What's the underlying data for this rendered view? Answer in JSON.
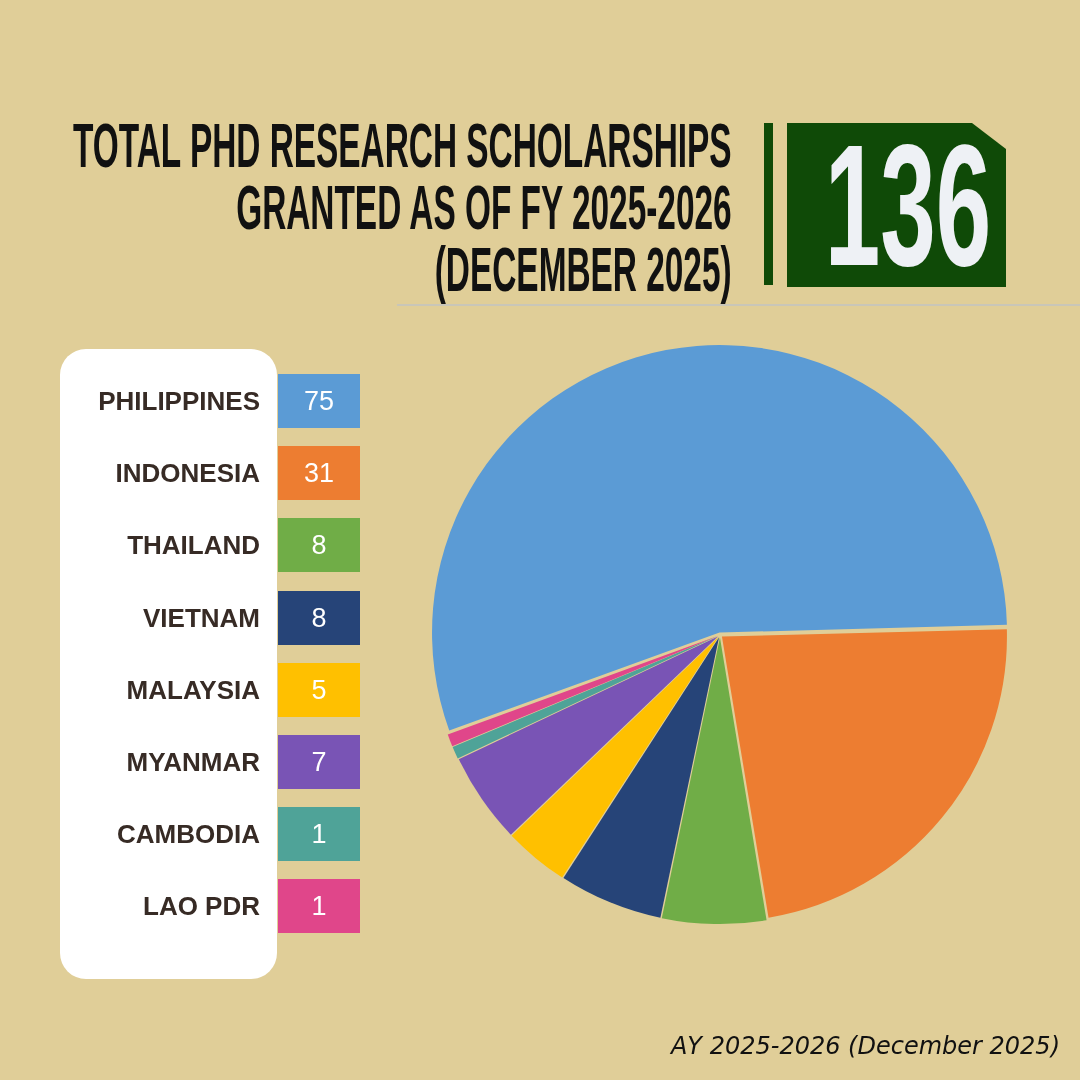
{
  "chart_data": {
    "type": "pie",
    "title": "TOTAL PHD RESEARCH SCHOLARSHIPS\nGRANTED AS OF FY 2025-2026\n(DECEMBER 2025)",
    "categories": [
      "PHILIPPINES",
      "INDONESIA",
      "THAILAND",
      "VIETNAM",
      "MALAYSIA",
      "MYANMAR",
      "CAMBODIA",
      "LAO PDR"
    ],
    "values": [
      75,
      31,
      8,
      8,
      5,
      7,
      1,
      1
    ],
    "colors": [
      "#5b9bd5",
      "#ed7d31",
      "#70ad47",
      "#264478",
      "#ffc000",
      "#7954b5",
      "#4fa398",
      "#e0468a"
    ],
    "data_labels": true,
    "legend": "left",
    "annotations": [
      "136",
      "AY 2025-2026 (December 2025)"
    ]
  }
}
